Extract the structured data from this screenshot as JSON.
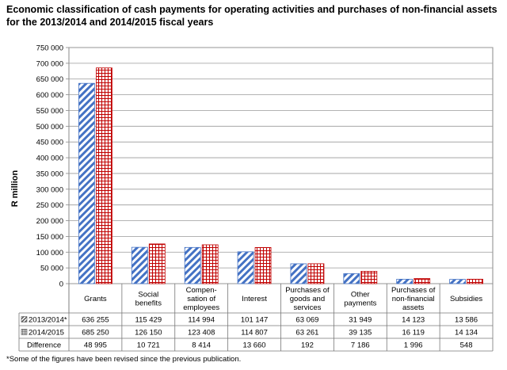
{
  "title": "Economic classification of cash payments for operating activities and purchases of non-financial assets for the 2013/2014 and 2014/2015 fiscal years",
  "footnote": "*Some of the figures have been revised since the previous publication.",
  "chart_data": {
    "type": "bar",
    "title": "Economic classification of cash payments for operating activities and purchases of non-financial assets for the 2013/2014 and 2014/2015 fiscal years",
    "ylabel": "R million",
    "ylim": [
      0,
      750000
    ],
    "yticks": [
      "0",
      "50 000",
      "100 000",
      "150 000",
      "200 000",
      "250 000",
      "300 000",
      "350 000",
      "400 000",
      "450 000",
      "500 000",
      "550 000",
      "600 000",
      "650 000",
      "700 000",
      "750 000"
    ],
    "grid": true,
    "categories": [
      [
        "Grants"
      ],
      [
        "Social",
        "benefits"
      ],
      [
        "Compen-",
        "sation of",
        "employees"
      ],
      [
        "Interest"
      ],
      [
        "Purchases of",
        "goods and",
        "services"
      ],
      [
        "Other",
        "payments"
      ],
      [
        "Purchases of",
        "non-financial",
        "assets"
      ],
      [
        "Subsidies"
      ]
    ],
    "series": [
      {
        "name": "2013/2014*",
        "values": [
          636255,
          115429,
          114994,
          101147,
          63069,
          31949,
          14123,
          13586
        ],
        "labels": [
          "636 255",
          "115 429",
          "114 994",
          "101 147",
          "63 069",
          "31 949",
          "14 123",
          "13 586"
        ],
        "color": "#4472c4",
        "pattern": "diagonal-stripes"
      },
      {
        "name": "2014/2015",
        "values": [
          685250,
          126150,
          123408,
          114807,
          63261,
          39135,
          16119,
          14134
        ],
        "labels": [
          "685 250",
          "126 150",
          "123 408",
          "114 807",
          "63 261",
          "39 135",
          "16 119",
          "14 134"
        ],
        "color": "#c00000",
        "pattern": "grid"
      }
    ],
    "difference": {
      "name": "Difference",
      "values": [
        48995,
        10721,
        8414,
        13660,
        192,
        7186,
        1996,
        548
      ],
      "labels": [
        "48 995",
        "10 721",
        "8 414",
        "13 660",
        "192",
        "7 186",
        "1 996",
        "548"
      ]
    }
  }
}
